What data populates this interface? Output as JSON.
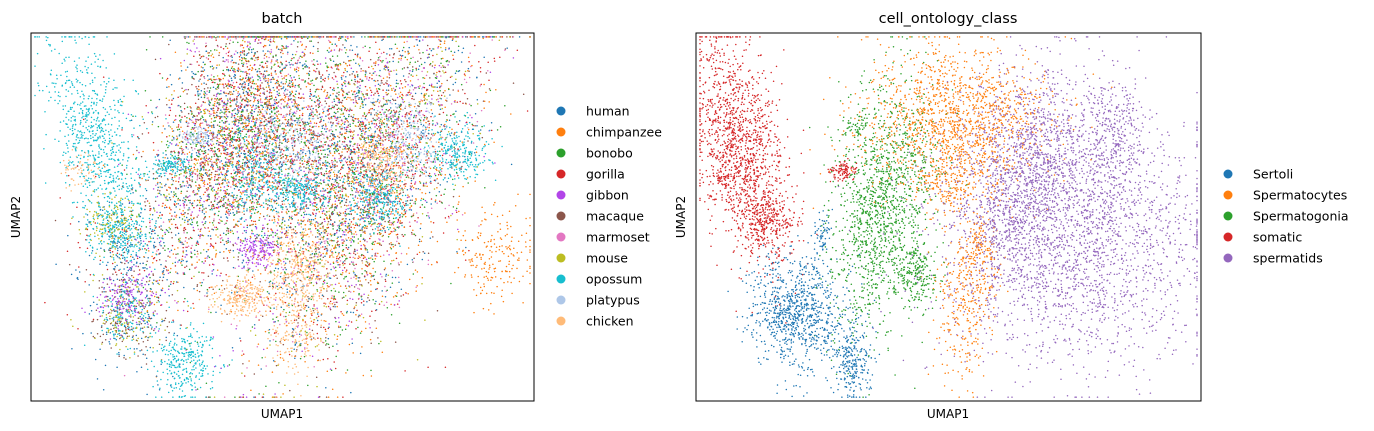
{
  "chart_data": [
    {
      "type": "scatter",
      "title": "batch",
      "xlabel": "UMAP1",
      "ylabel": "UMAP2",
      "xlim": [
        0,
        10
      ],
      "ylim": [
        0,
        7.5
      ],
      "grid": false,
      "xticks": [],
      "yticks": [],
      "legend_position": "right",
      "series": [
        {
          "name": "human",
          "color": "#1f77b4",
          "clusters": [
            [
              6.6,
              4.6,
              1.1,
              1.8,
              0.6,
              700
            ],
            [
              3.9,
              5.4,
              0.8,
              1.5,
              0.5,
              550
            ],
            [
              5.1,
              5.3,
              1.0,
              1.1,
              0.2,
              350
            ],
            [
              1.9,
              3.1,
              0.5,
              0.6,
              0.1,
              150
            ],
            [
              2.0,
              1.6,
              0.4,
              0.6,
              0.1,
              110
            ]
          ]
        },
        {
          "name": "chimpanzee",
          "color": "#ff7f0e",
          "clusters": [
            [
              6.8,
              4.4,
              1.1,
              1.8,
              0.6,
              700
            ],
            [
              3.9,
              5.3,
              0.8,
              1.5,
              0.5,
              500
            ],
            [
              5.1,
              5.4,
              1.0,
              1.1,
              0.2,
              350
            ],
            [
              9.2,
              3.0,
              0.4,
              0.5,
              0.0,
              200
            ]
          ]
        },
        {
          "name": "bonobo",
          "color": "#2ca02c",
          "clusters": [
            [
              6.6,
              4.4,
              1.1,
              1.8,
              0.6,
              600
            ],
            [
              3.8,
              5.3,
              0.8,
              1.5,
              0.5,
              450
            ],
            [
              5.0,
              5.4,
              1.0,
              1.1,
              0.2,
              300
            ]
          ]
        },
        {
          "name": "gorilla",
          "color": "#d62728",
          "clusters": [
            [
              6.7,
              4.5,
              1.1,
              1.8,
              0.6,
              550
            ],
            [
              3.9,
              5.4,
              0.8,
              1.5,
              0.5,
              400
            ],
            [
              5.2,
              5.5,
              1.0,
              1.1,
              0.2,
              300
            ],
            [
              1.8,
              3.4,
              0.8,
              0.8,
              0.0,
              90
            ]
          ]
        },
        {
          "name": "gibbon",
          "color": "#b245e8",
          "clusters": [
            [
              4.5,
              3.1,
              0.2,
              0.2,
              0.0,
              180
            ],
            [
              1.9,
              2.1,
              0.3,
              0.3,
              0.0,
              180
            ],
            [
              6.6,
              4.4,
              1.1,
              1.8,
              0.6,
              300
            ],
            [
              3.8,
              5.3,
              0.8,
              1.5,
              0.5,
              250
            ]
          ]
        },
        {
          "name": "macaque",
          "color": "#8c564b",
          "clusters": [
            [
              6.6,
              4.5,
              1.1,
              1.8,
              0.6,
              500
            ],
            [
              3.9,
              5.4,
              0.8,
              1.5,
              0.5,
              400
            ],
            [
              5.1,
              5.4,
              1.0,
              1.1,
              0.2,
              250
            ],
            [
              1.9,
              1.8,
              0.4,
              0.5,
              0.0,
              160
            ]
          ]
        },
        {
          "name": "marmoset",
          "color": "#e377c2",
          "clusters": [
            [
              6.7,
              4.6,
              1.1,
              1.8,
              0.6,
              400
            ],
            [
              3.8,
              5.3,
              0.8,
              1.5,
              0.5,
              300
            ],
            [
              5.1,
              5.4,
              1.0,
              1.1,
              0.2,
              200
            ]
          ]
        },
        {
          "name": "mouse",
          "color": "#bcbd22",
          "clusters": [
            [
              6.6,
              4.4,
              1.1,
              1.8,
              0.6,
              350
            ],
            [
              1.6,
              3.6,
              0.3,
              0.3,
              0.0,
              160
            ],
            [
              1.9,
              1.8,
              0.4,
              0.4,
              0.0,
              120
            ],
            [
              3.8,
              5.3,
              0.8,
              1.5,
              0.5,
              250
            ]
          ]
        },
        {
          "name": "opossum",
          "color": "#17becf",
          "clusters": [
            [
              1.3,
              5.4,
              0.5,
              1.0,
              -0.5,
              750
            ],
            [
              1.8,
              3.4,
              0.3,
              0.3,
              0.0,
              250
            ],
            [
              2.8,
              4.8,
              0.2,
              0.1,
              0.0,
              130
            ],
            [
              5.3,
              4.3,
              0.3,
              0.2,
              0.0,
              250
            ],
            [
              6.9,
              4.1,
              0.3,
              0.3,
              0.0,
              250
            ],
            [
              8.5,
              5.1,
              0.3,
              0.3,
              0.0,
              250
            ],
            [
              3.1,
              0.8,
              0.3,
              0.4,
              0.0,
              300
            ],
            [
              4.4,
              4.6,
              0.3,
              0.5,
              0.0,
              200
            ],
            [
              1.9,
              1.8,
              0.3,
              0.3,
              0.0,
              120
            ]
          ]
        },
        {
          "name": "platypus",
          "color": "#aec7e8",
          "clusters": [
            [
              5.1,
              5.2,
              0.5,
              0.5,
              0.0,
              300
            ],
            [
              7.5,
              5.1,
              0.4,
              0.3,
              0.0,
              200
            ],
            [
              3.3,
              5.4,
              0.2,
              0.1,
              0.0,
              100
            ],
            [
              7.4,
              5.8,
              0.3,
              0.3,
              0.0,
              100
            ]
          ]
        },
        {
          "name": "chicken",
          "color": "#ffbb78",
          "clusters": [
            [
              5.4,
              2.9,
              0.4,
              0.5,
              0.0,
              300
            ],
            [
              5.2,
              1.9,
              0.3,
              0.7,
              0.0,
              300
            ],
            [
              4.2,
              2.1,
              0.3,
              0.2,
              0.0,
              250
            ],
            [
              7.0,
              4.8,
              0.3,
              0.3,
              0.0,
              250
            ],
            [
              1.0,
              4.7,
              0.2,
              0.2,
              0.0,
              60
            ]
          ]
        }
      ]
    },
    {
      "type": "scatter",
      "title": "cell_ontology_class",
      "xlabel": "UMAP1",
      "ylabel": "UMAP2",
      "xlim": [
        0,
        10
      ],
      "ylim": [
        0,
        7.5
      ],
      "grid": false,
      "xticks": [],
      "yticks": [],
      "legend_position": "right",
      "series": [
        {
          "name": "Sertoli",
          "color": "#1f77b4",
          "clusters": [
            [
              2.0,
              1.8,
              0.45,
              0.55,
              0.0,
              900
            ],
            [
              3.1,
              0.8,
              0.2,
              0.4,
              0.0,
              250
            ],
            [
              2.5,
              3.4,
              0.1,
              0.2,
              0.4,
              60
            ]
          ]
        },
        {
          "name": "Spermatocytes",
          "color": "#ff7f0e",
          "clusters": [
            [
              5.2,
              5.7,
              0.9,
              0.8,
              0.0,
              1500
            ],
            [
              5.0,
              4.4,
              0.3,
              0.3,
              0.0,
              150
            ],
            [
              5.3,
              2.0,
              0.3,
              0.8,
              0.0,
              300
            ],
            [
              5.6,
              3.0,
              0.2,
              0.4,
              0.0,
              150
            ]
          ]
        },
        {
          "name": "Spermatogonia",
          "color": "#2ca02c",
          "clusters": [
            [
              3.7,
              4.0,
              0.5,
              1.2,
              0.3,
              1400
            ],
            [
              4.4,
              2.6,
              0.2,
              0.3,
              0.0,
              200
            ],
            [
              3.2,
              5.6,
              0.15,
              0.15,
              0.0,
              60
            ]
          ]
        },
        {
          "name": "somatic",
          "color": "#d62728",
          "clusters": [
            [
              0.9,
              5.1,
              0.45,
              1.1,
              -0.4,
              1400
            ],
            [
              1.4,
              3.7,
              0.3,
              0.3,
              0.0,
              250
            ],
            [
              2.9,
              4.7,
              0.15,
              0.1,
              0.0,
              100
            ],
            [
              0.5,
              4.5,
              0.05,
              0.05,
              0.0,
              20
            ]
          ]
        },
        {
          "name": "spermatids",
          "color": "#9467bd",
          "clusters": [
            [
              7.4,
              3.4,
              1.3,
              1.3,
              0.0,
              2600
            ],
            [
              6.8,
              5.2,
              0.6,
              0.8,
              0.0,
              700
            ],
            [
              8.3,
              5.4,
              0.3,
              0.6,
              0.0,
              300
            ],
            [
              6.2,
              3.9,
              0.4,
              0.8,
              0.0,
              400
            ]
          ]
        }
      ]
    }
  ]
}
